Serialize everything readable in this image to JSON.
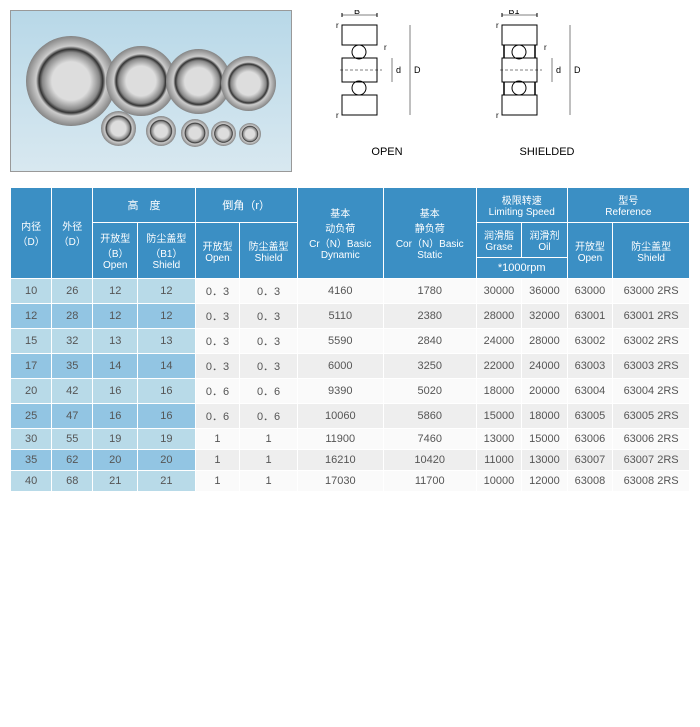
{
  "diagrams": {
    "open_label": "OPEN",
    "shielded_label": "SHIELDED",
    "dim_B": "B",
    "dim_B1": "B1",
    "dim_r": "r",
    "dim_d": "d",
    "dim_D": "D"
  },
  "headers": {
    "inner_dia": "内径\n（D）",
    "outer_dia": "外径\n（D）",
    "height": "高　度",
    "height_open": "开放型\n（B）\nOpen",
    "height_shield": "防尘盖型\n（B1）\nShield",
    "chamfer": "倒角（r）",
    "chamfer_open": "开放型\nOpen",
    "chamfer_shield": "防尘盖型\nShield",
    "dynamic_load": "基本\n动负荷\nCr（N）Basic\nDynamic",
    "static_load": "基本\n静负荷\nCor（N）Basic\nStatic",
    "limiting_speed": "极限转速\nLimiting Speed",
    "grease": "润滑脂\nGrase",
    "oil": "润滑剂\nOil",
    "rpm_note": "*1000rpm",
    "reference": "型号\nReference",
    "ref_open": "开放型\nOpen",
    "ref_shield": "防尘盖型\nShield"
  },
  "rows": [
    {
      "d": "10",
      "D": "26",
      "bo": "12",
      "bs": "12",
      "ro": "0．3",
      "rs": "0．3",
      "cr": "4160",
      "cor": "1780",
      "grease": "30000",
      "oil": "36000",
      "open": "63000",
      "shield": "63000 2RS"
    },
    {
      "d": "12",
      "D": "28",
      "bo": "12",
      "bs": "12",
      "ro": "0．3",
      "rs": "0．3",
      "cr": "5110",
      "cor": "2380",
      "grease": "28000",
      "oil": "32000",
      "open": "63001",
      "shield": "63001 2RS"
    },
    {
      "d": "15",
      "D": "32",
      "bo": "13",
      "bs": "13",
      "ro": "0．3",
      "rs": "0．3",
      "cr": "5590",
      "cor": "2840",
      "grease": "24000",
      "oil": "28000",
      "open": "63002",
      "shield": "63002 2RS"
    },
    {
      "d": "17",
      "D": "35",
      "bo": "14",
      "bs": "14",
      "ro": "0．3",
      "rs": "0．3",
      "cr": "6000",
      "cor": "3250",
      "grease": "22000",
      "oil": "24000",
      "open": "63003",
      "shield": "63003 2RS"
    },
    {
      "d": "20",
      "D": "42",
      "bo": "16",
      "bs": "16",
      "ro": "0．6",
      "rs": "0．6",
      "cr": "9390",
      "cor": "5020",
      "grease": "18000",
      "oil": "20000",
      "open": "63004",
      "shield": "63004 2RS"
    },
    {
      "d": "25",
      "D": "47",
      "bo": "16",
      "bs": "16",
      "ro": "0．6",
      "rs": "0．6",
      "cr": "10060",
      "cor": "5860",
      "grease": "15000",
      "oil": "18000",
      "open": "63005",
      "shield": "63005 2RS"
    },
    {
      "d": "30",
      "D": "55",
      "bo": "19",
      "bs": "19",
      "ro": "1",
      "rs": "1",
      "cr": "11900",
      "cor": "7460",
      "grease": "13000",
      "oil": "15000",
      "open": "63006",
      "shield": "63006 2RS"
    },
    {
      "d": "35",
      "D": "62",
      "bo": "20",
      "bs": "20",
      "ro": "1",
      "rs": "1",
      "cr": "16210",
      "cor": "10420",
      "grease": "11000",
      "oil": "13000",
      "open": "63007",
      "shield": "63007 2RS"
    },
    {
      "d": "40",
      "D": "68",
      "bo": "21",
      "bs": "21",
      "ro": "1",
      "rs": "1",
      "cr": "17030",
      "cor": "11700",
      "grease": "10000",
      "oil": "12000",
      "open": "63008",
      "shield": "63008 2RS"
    }
  ]
}
